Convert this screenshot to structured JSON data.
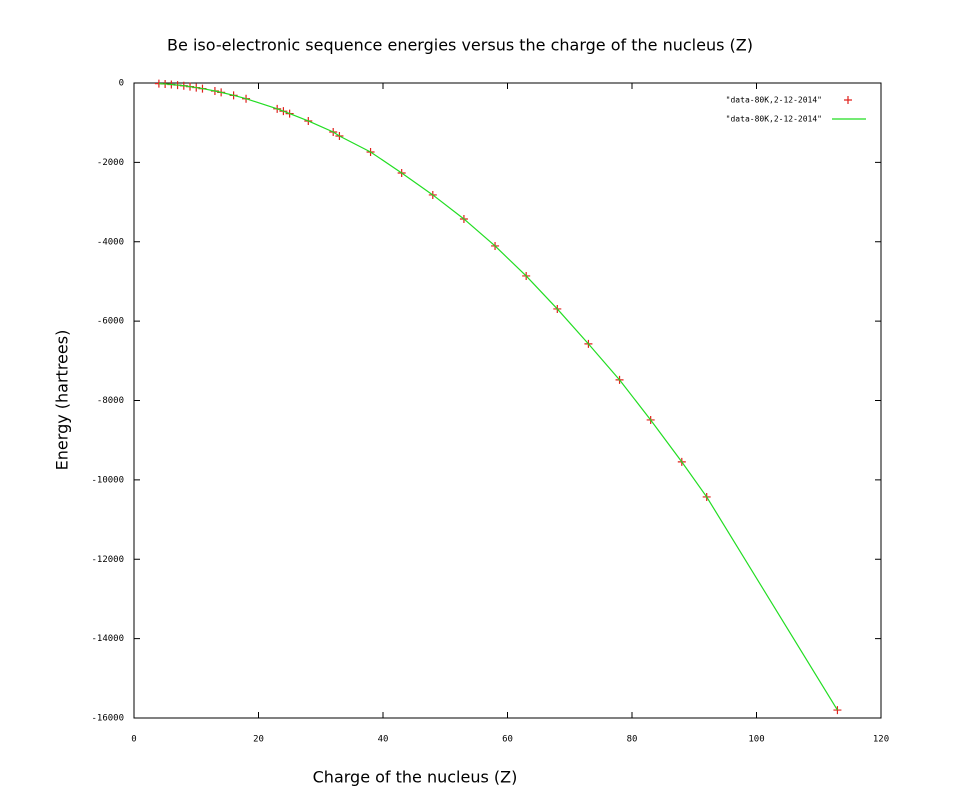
{
  "chart_data": {
    "type": "scatter-line",
    "title": "Be iso-electronic sequence energies versus  the charge of the nucleus (Z)",
    "x_label": "Charge of the nucleus (Z)",
    "y_label": "Energy (hartrees)",
    "xlim": [
      0,
      120
    ],
    "xticks": [
      0,
      20,
      40,
      60,
      80,
      100,
      120
    ],
    "ylim": [
      -16000,
      0
    ],
    "yticks": [
      0,
      -2000,
      -4000,
      -6000,
      -8000,
      -10000,
      -12000,
      -14000,
      -16000
    ],
    "legend": "top-right",
    "series": [
      {
        "name": "\"data-80K,2-12-2014\"",
        "style": "points",
        "color": "#e0201c",
        "x": [
          4,
          5,
          6,
          7,
          8,
          9,
          10,
          11,
          13,
          14,
          16,
          18,
          23,
          24,
          25,
          28,
          32,
          33,
          38,
          43,
          48,
          53,
          58,
          63,
          68,
          73,
          78,
          83,
          88,
          92,
          113
        ],
        "values": [
          -15,
          -24,
          -37,
          -52,
          -70,
          -91,
          -115,
          -141,
          -202,
          -236,
          -311,
          -396,
          -651,
          -710,
          -771,
          -957,
          -1234,
          -1335,
          -1738,
          -2267,
          -2821,
          -3426,
          -4106,
          -4862,
          -5693,
          -6574,
          -7480,
          -8490,
          -9547,
          -10430,
          -15800
        ]
      },
      {
        "name": "\"data-80K,2-12-2014\"",
        "style": "line",
        "color": "#22dd22",
        "x": [
          4,
          5,
          6,
          7,
          8,
          9,
          10,
          11,
          13,
          14,
          16,
          18,
          23,
          24,
          25,
          28,
          32,
          33,
          38,
          43,
          48,
          53,
          58,
          63,
          68,
          73,
          78,
          83,
          88,
          92,
          113
        ],
        "values": [
          -15,
          -24,
          -37,
          -52,
          -70,
          -91,
          -115,
          -141,
          -202,
          -236,
          -311,
          -396,
          -651,
          -710,
          -771,
          -957,
          -1234,
          -1335,
          -1738,
          -2267,
          -2821,
          -3426,
          -4106,
          -4862,
          -5693,
          -6574,
          -7480,
          -8490,
          -9547,
          -10430,
          -15800
        ]
      }
    ]
  }
}
